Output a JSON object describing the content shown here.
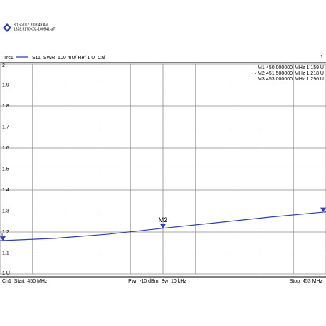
{
  "chart_data": {
    "type": "line",
    "timestamp": "3/16/2017 8:03:49 AM",
    "serial": "1328.5170K02-100541-uT",
    "trace_label": "Trc1",
    "trace_info": "S11  SWR  100 mU/ Ref 1 U  Cal",
    "channel_number": "1",
    "trace_number": "1",
    "x": [
      450,
      450.5,
      451,
      451.5,
      452,
      452.5,
      453
    ],
    "xlim": [
      450,
      453
    ],
    "xticks": [
      450,
      450.3,
      450.6,
      450.9,
      451.2,
      451.5,
      451.8,
      452.1,
      452.4,
      452.7,
      453
    ],
    "ylim": [
      1,
      2
    ],
    "yticks": [
      {
        "value": 1,
        "label": "1 U"
      },
      1.1,
      1.2,
      1.3,
      1.4,
      1.5,
      1.6,
      1.7,
      1.8,
      1.9,
      2
    ],
    "grid": true,
    "series": [
      {
        "name": "Trc1",
        "color": "#2f3fa8",
        "values": [
          1.159,
          1.17,
          1.19,
          1.218,
          1.245,
          1.272,
          1.296
        ]
      }
    ],
    "markers": [
      {
        "label": "M1",
        "x": 450,
        "y": 1.159,
        "x_label": "450.000000",
        "x_unit": "MHz",
        "y_label": "1.159 U"
      },
      {
        "label": "M2",
        "x": 451.5,
        "y": 1.218,
        "x_label": "451.500000",
        "x_unit": "MHz",
        "y_label": "1.218 U"
      },
      {
        "label": "M3",
        "x": 453,
        "y": 1.296,
        "x_label": "453.000000",
        "x_unit": "MHz",
        "y_label": "1.296 U"
      }
    ],
    "active_marker": 1,
    "footer": [
      "Ch1  Start  450 MHz",
      "Pwr  -10 dBm  Bw  10 kHz",
      "Stop  453 MHz"
    ]
  }
}
